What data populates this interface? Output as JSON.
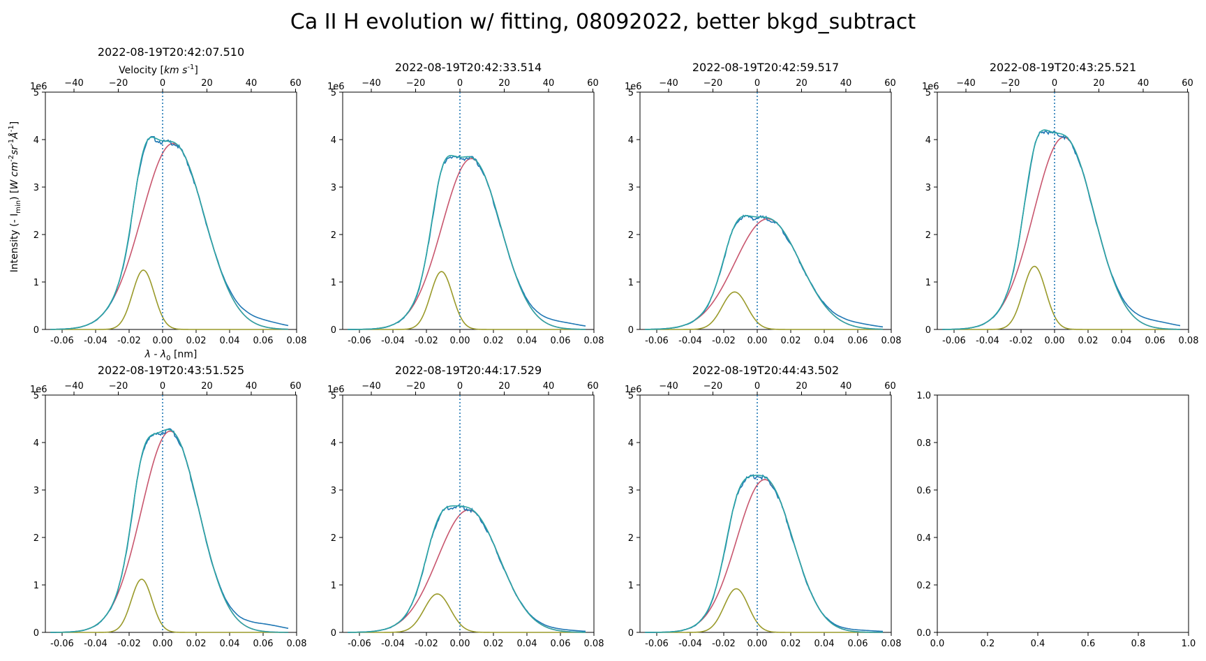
{
  "figure_title": "Ca II H evolution w/ fitting, 08092022, better bkgd_subtract",
  "colors": {
    "observed": "#1f77b4",
    "total_fit": "#2ca5a5",
    "main_component": "#c8566e",
    "blue_component": "#9a9a2a",
    "rest_line": "#1f77b4",
    "axes": "#000000"
  },
  "axis_labels": {
    "x_bottom": "λ - λ",
    "x_bottom_sub": "0",
    "x_bottom_unit": " [nm]",
    "x_top": "Velocity [km s",
    "x_top_sup": "-1",
    "x_top_end": "]",
    "y_prefix": "Intensity (- I",
    "y_sub": "min",
    "y_rest": ") [W cm",
    "y_rest2": "sr",
    "y_rest3": "Å",
    "y_sup": "-2",
    "y_sup2": "-1",
    "y_sup3": "-1",
    "y_end": "]",
    "offset": "1e6"
  },
  "chart_data": [
    {
      "type": "line",
      "title": "2022-08-19T20:42:07.510",
      "xlim": [
        -0.07,
        0.08
      ],
      "ylim": [
        0,
        5
      ],
      "x_ticks": [
        "-0.06",
        "-0.04",
        "-0.02",
        "0.00",
        "0.02",
        "0.04",
        "0.06",
        "0.08"
      ],
      "x_tick_values": [
        -0.06,
        -0.04,
        -0.02,
        0.0,
        0.02,
        0.04,
        0.06,
        0.08
      ],
      "y_ticks": [
        "0",
        "1",
        "2",
        "3",
        "4",
        "5"
      ],
      "top_ticks": [
        "-40",
        "-20",
        "0",
        "20",
        "40",
        "60"
      ],
      "top_tick_values": [
        -40,
        -20,
        0,
        20,
        40,
        60
      ],
      "velocity_per_nm": 756,
      "rest_line_x": 0.0,
      "x_range": [
        -0.067,
        0.075
      ],
      "series": [
        {
          "role": "main_component",
          "amplitude": 3.92,
          "center": 0.0062,
          "sigma": 0.0188
        },
        {
          "role": "blue_component",
          "amplitude": 1.25,
          "center": -0.0115,
          "sigma": 0.0065
        }
      ],
      "observed_extra_wing": 0.11
    },
    {
      "type": "line",
      "title": "2022-08-19T20:42:33.514",
      "xlim": [
        -0.07,
        0.08
      ],
      "ylim": [
        0,
        5
      ],
      "x_ticks": [
        "-0.06",
        "-0.04",
        "-0.02",
        "0.00",
        "0.02",
        "0.04",
        "0.06",
        "0.08"
      ],
      "x_tick_values": [
        -0.06,
        -0.04,
        -0.02,
        0.0,
        0.02,
        0.04,
        0.06,
        0.08
      ],
      "y_ticks": [
        "0",
        "1",
        "2",
        "3",
        "4",
        "5"
      ],
      "top_ticks": [
        "-40",
        "-20",
        "0",
        "20",
        "40",
        "60"
      ],
      "top_tick_values": [
        -40,
        -20,
        0,
        20,
        40,
        60
      ],
      "velocity_per_nm": 756,
      "rest_line_x": 0.0,
      "x_range": [
        -0.067,
        0.075
      ],
      "series": [
        {
          "role": "main_component",
          "amplitude": 3.6,
          "center": 0.0068,
          "sigma": 0.0175
        },
        {
          "role": "blue_component",
          "amplitude": 1.22,
          "center": -0.011,
          "sigma": 0.0065
        }
      ],
      "observed_extra_wing": 0.1
    },
    {
      "type": "line",
      "title": "2022-08-19T20:42:59.517",
      "xlim": [
        -0.07,
        0.08
      ],
      "ylim": [
        0,
        5
      ],
      "x_ticks": [
        "-0.06",
        "-0.04",
        "-0.02",
        "0.00",
        "0.02",
        "0.04",
        "0.06",
        "0.08"
      ],
      "x_tick_values": [
        -0.06,
        -0.04,
        -0.02,
        0.0,
        0.02,
        0.04,
        0.06,
        0.08
      ],
      "y_ticks": [
        "0",
        "1",
        "2",
        "3",
        "4",
        "5"
      ],
      "top_ticks": [
        "-40",
        "-20",
        "0",
        "20",
        "40",
        "60"
      ],
      "top_tick_values": [
        -40,
        -20,
        0,
        20,
        40,
        60
      ],
      "velocity_per_nm": 756,
      "rest_line_x": 0.0,
      "x_range": [
        -0.067,
        0.075
      ],
      "series": [
        {
          "role": "main_component",
          "amplitude": 2.33,
          "center": 0.0062,
          "sigma": 0.0195
        },
        {
          "role": "blue_component",
          "amplitude": 0.79,
          "center": -0.0135,
          "sigma": 0.0075
        }
      ],
      "observed_extra_wing": 0.07
    },
    {
      "type": "line",
      "title": "2022-08-19T20:43:25.521",
      "xlim": [
        -0.07,
        0.08
      ],
      "ylim": [
        0,
        5
      ],
      "x_ticks": [
        "-0.06",
        "-0.04",
        "-0.02",
        "0.00",
        "0.02",
        "0.04",
        "0.06",
        "0.08"
      ],
      "x_tick_values": [
        -0.06,
        -0.04,
        -0.02,
        0.0,
        0.02,
        0.04,
        0.06,
        0.08
      ],
      "y_ticks": [
        "0",
        "1",
        "2",
        "3",
        "4",
        "5"
      ],
      "top_ticks": [
        "-40",
        "-20",
        "0",
        "20",
        "40",
        "60"
      ],
      "top_tick_values": [
        -40,
        -20,
        0,
        20,
        40,
        60
      ],
      "velocity_per_nm": 756,
      "rest_line_x": 0.0,
      "x_range": [
        -0.067,
        0.075
      ],
      "series": [
        {
          "role": "main_component",
          "amplitude": 4.05,
          "center": 0.0055,
          "sigma": 0.018
        },
        {
          "role": "blue_component",
          "amplitude": 1.33,
          "center": -0.012,
          "sigma": 0.0068
        }
      ],
      "observed_extra_wing": 0.11
    },
    {
      "type": "line",
      "title": "2022-08-19T20:43:51.525",
      "xlim": [
        -0.07,
        0.08
      ],
      "ylim": [
        0,
        5
      ],
      "x_ticks": [
        "-0.06",
        "-0.04",
        "-0.02",
        "0.00",
        "0.02",
        "0.04",
        "0.06",
        "0.08"
      ],
      "x_tick_values": [
        -0.06,
        -0.04,
        -0.02,
        0.0,
        0.02,
        0.04,
        0.06,
        0.08
      ],
      "y_ticks": [
        "0",
        "1",
        "2",
        "3",
        "4",
        "5"
      ],
      "top_ticks": [
        "-40",
        "-20",
        "0",
        "20",
        "40",
        "60"
      ],
      "top_tick_values": [
        -40,
        -20,
        0,
        20,
        40,
        60
      ],
      "velocity_per_nm": 756,
      "rest_line_x": 0.0,
      "x_range": [
        -0.067,
        0.075
      ],
      "series": [
        {
          "role": "main_component",
          "amplitude": 4.24,
          "center": 0.0045,
          "sigma": 0.0172
        },
        {
          "role": "blue_component",
          "amplitude": 1.12,
          "center": -0.0125,
          "sigma": 0.0062
        }
      ],
      "observed_extra_wing": 0.12
    },
    {
      "type": "line",
      "title": "2022-08-19T20:44:17.529",
      "xlim": [
        -0.07,
        0.08
      ],
      "ylim": [
        0,
        5
      ],
      "x_ticks": [
        "-0.06",
        "-0.04",
        "-0.02",
        "0.00",
        "0.02",
        "0.04",
        "0.06",
        "0.08"
      ],
      "x_tick_values": [
        -0.06,
        -0.04,
        -0.02,
        0.0,
        0.02,
        0.04,
        0.06,
        0.08
      ],
      "y_ticks": [
        "0",
        "1",
        "2",
        "3",
        "4",
        "5"
      ],
      "top_ticks": [
        "-40",
        "-20",
        "0",
        "20",
        "40",
        "60"
      ],
      "top_tick_values": [
        -40,
        -20,
        0,
        20,
        40,
        60
      ],
      "velocity_per_nm": 756,
      "rest_line_x": 0.0,
      "x_range": [
        -0.067,
        0.075
      ],
      "series": [
        {
          "role": "main_component",
          "amplitude": 2.58,
          "center": 0.0052,
          "sigma": 0.0185
        },
        {
          "role": "blue_component",
          "amplitude": 0.81,
          "center": -0.0135,
          "sigma": 0.0078
        }
      ],
      "observed_extra_wing": 0.03
    },
    {
      "type": "line",
      "title": "2022-08-19T20:44:43.502",
      "xlim": [
        -0.07,
        0.08
      ],
      "ylim": [
        0,
        5
      ],
      "x_ticks": [
        "-0.06",
        "-0.04",
        "-0.02",
        "0.00",
        "0.02",
        "0.04",
        "0.06",
        "0.08"
      ],
      "x_tick_values": [
        -0.06,
        -0.04,
        -0.02,
        0.0,
        0.02,
        0.04,
        0.06,
        0.08
      ],
      "y_ticks": [
        "0",
        "1",
        "2",
        "3",
        "4",
        "5"
      ],
      "top_ticks": [
        "-40",
        "-20",
        "0",
        "20",
        "40",
        "60"
      ],
      "top_tick_values": [
        -40,
        -20,
        0,
        20,
        40,
        60
      ],
      "velocity_per_nm": 756,
      "rest_line_x": 0.0,
      "x_range": [
        -0.067,
        0.075
      ],
      "series": [
        {
          "role": "main_component",
          "amplitude": 3.22,
          "center": 0.0045,
          "sigma": 0.0168
        },
        {
          "role": "blue_component",
          "amplitude": 0.92,
          "center": -0.0125,
          "sigma": 0.0072
        }
      ],
      "observed_extra_wing": 0.03
    },
    {
      "type": "line",
      "title": "",
      "empty": true,
      "xlim": [
        0,
        1
      ],
      "ylim": [
        0,
        1
      ],
      "x_ticks": [
        "0.0",
        "0.2",
        "0.4",
        "0.6",
        "0.8",
        "1.0"
      ],
      "x_tick_values": [
        0,
        0.2,
        0.4,
        0.6,
        0.8,
        1.0
      ],
      "y_ticks": [
        "0.0",
        "0.2",
        "0.4",
        "0.6",
        "0.8",
        "1.0"
      ],
      "y_tick_values": [
        0,
        0.2,
        0.4,
        0.6,
        0.8,
        1.0
      ]
    }
  ]
}
